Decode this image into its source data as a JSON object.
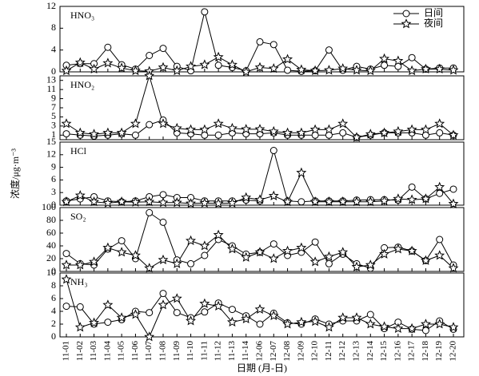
{
  "chart_data": [
    {
      "type": "line",
      "title": "HNO₃",
      "legend": "upper right",
      "ylim": [
        0,
        12
      ],
      "yticks": [
        0,
        4,
        8,
        12
      ],
      "series": [
        {
          "name": "日间",
          "color": "#000000",
          "marker": "circle",
          "values": [
            1.2,
            1.5,
            1.5,
            4.5,
            1.3,
            0.5,
            3,
            4.3,
            1,
            0.2,
            11,
            1.2,
            0.8,
            0.2,
            5.5,
            5,
            0.3,
            0.1,
            0.2,
            4,
            0.3,
            1,
            0.5,
            1.2,
            1,
            2.6,
            0.5,
            0.7,
            0.7
          ]
        },
        {
          "name": "夜间",
          "color": "#000000",
          "marker": "star",
          "values": [
            0.2,
            1.7,
            0.5,
            1.6,
            0.7,
            0.2,
            0.1,
            0.8,
            0.2,
            1,
            1.3,
            2.7,
            1.3,
            0,
            0.8,
            0.6,
            2.3,
            0.4,
            0.2,
            0.3,
            0.6,
            0.3,
            0.2,
            2.4,
            2,
            0.2,
            0.5,
            0.5,
            0.3
          ]
        }
      ]
    },
    {
      "type": "line",
      "title": "HNO₂",
      "ylim": [
        0,
        14
      ],
      "yticks": [
        1,
        3,
        5,
        7,
        9,
        11,
        13
      ],
      "series": [
        {
          "color": "#000000",
          "marker": "circle",
          "values": [
            1.3,
            1,
            0.8,
            1,
            1.3,
            1,
            3.3,
            4.3,
            1.5,
            1.3,
            1,
            1,
            1.5,
            1.3,
            1.3,
            1.5,
            1,
            1,
            1,
            1,
            1.5,
            0.5,
            1,
            1.5,
            1.5,
            1.5,
            1,
            1.5,
            1
          ]
        },
        {
          "color": "#000000",
          "marker": "star",
          "values": [
            3.5,
            1.5,
            1.2,
            1.5,
            1.5,
            3.5,
            14,
            3.5,
            2.5,
            2.2,
            2.2,
            3.5,
            2.5,
            2.3,
            2.3,
            1.8,
            1.5,
            1.5,
            2.2,
            2.2,
            3.5,
            0.5,
            1.2,
            1.5,
            1.8,
            2.2,
            2.2,
            3.5,
            1
          ]
        }
      ]
    },
    {
      "type": "line",
      "title": "HCl",
      "ylabel": "浓度/μg·m⁻³",
      "ylim": [
        0,
        15
      ],
      "yticks": [
        0,
        3,
        6,
        9,
        12,
        15
      ],
      "series": [
        {
          "color": "#000000",
          "marker": "circle",
          "values": [
            1,
            1.5,
            2,
            1,
            0.8,
            1,
            2,
            2.5,
            1.8,
            1.8,
            1,
            1,
            1,
            1.2,
            1,
            13,
            1,
            0.8,
            1,
            1,
            1,
            1.2,
            1.3,
            1.3,
            1.2,
            4.3,
            1.5,
            2.8,
            3.8
          ]
        },
        {
          "color": "#000000",
          "marker": "star",
          "values": [
            0.8,
            2.3,
            0.8,
            0.5,
            0.8,
            0.7,
            0.8,
            0.6,
            0.6,
            0.4,
            0.5,
            0.4,
            0.5,
            1.8,
            1.3,
            2.2,
            0.8,
            7.7,
            0.8,
            0.8,
            0.8,
            0.8,
            0.8,
            1,
            1.5,
            1.3,
            1.5,
            4.3,
            0.3
          ]
        }
      ]
    },
    {
      "type": "line",
      "title": "SO₂",
      "ylim": [
        0,
        100
      ],
      "yticks": [
        0,
        20,
        40,
        60,
        80,
        100
      ],
      "series": [
        {
          "color": "#000000",
          "marker": "circle",
          "values": [
            28,
            12,
            10,
            35,
            48,
            20,
            92,
            77,
            18,
            12,
            25,
            50,
            40,
            27,
            30,
            43,
            25,
            30,
            46,
            12,
            27,
            12,
            5,
            37,
            38,
            32,
            17,
            50,
            10
          ]
        },
        {
          "color": "#000000",
          "marker": "star",
          "values": [
            10,
            10,
            15,
            37,
            30,
            25,
            5,
            18,
            12,
            48,
            40,
            57,
            35,
            22,
            30,
            20,
            32,
            37,
            15,
            23,
            30,
            7,
            10,
            27,
            35,
            32,
            17,
            25,
            5
          ]
        }
      ]
    },
    {
      "type": "line",
      "title": "NH₃",
      "xlabel": "日期 (月-日)",
      "ylim": [
        0,
        10
      ],
      "yticks": [
        0,
        2,
        4,
        6,
        8,
        10
      ],
      "categories": [
        "11-01",
        "11-02",
        "11-03",
        "11-04",
        "11-05",
        "11-06",
        "11-07",
        "11-08",
        "11-09",
        "11-10",
        "11-11",
        "11-12",
        "11-13",
        "11-14",
        "12-06",
        "12-07",
        "12-08",
        "12-09",
        "12-10",
        "12-11",
        "12-12",
        "12-13",
        "12-14",
        "12-15",
        "12-16",
        "12-17",
        "12-18",
        "12-19",
        "12-20"
      ],
      "series": [
        {
          "color": "#000000",
          "marker": "circle",
          "values": [
            4.8,
            4.7,
            2,
            2.3,
            2.7,
            4,
            3.8,
            6.8,
            3.8,
            3,
            3.9,
            5.3,
            4.3,
            3.3,
            2,
            3.7,
            2.2,
            2,
            2.8,
            2,
            2.5,
            2.5,
            3.5,
            1.3,
            2.3,
            1.2,
            1,
            2.5,
            1.2
          ]
        },
        {
          "color": "#000000",
          "marker": "star",
          "values": [
            9,
            1.5,
            2.2,
            5,
            3,
            3.5,
            0,
            5,
            6,
            2.5,
            5.2,
            4.8,
            2.3,
            2.8,
            4.3,
            3.3,
            2,
            2.3,
            2.4,
            1.5,
            3,
            3,
            2,
            1.6,
            1.3,
            1.3,
            2,
            2,
            1.5
          ]
        }
      ]
    }
  ]
}
